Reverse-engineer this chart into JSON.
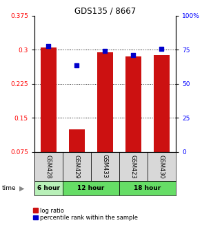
{
  "title": "GDS135 / 8667",
  "samples": [
    "GSM428",
    "GSM429",
    "GSM433",
    "GSM423",
    "GSM430"
  ],
  "time_group_spans": [
    1,
    2,
    2
  ],
  "time_group_labels": [
    "6 hour",
    "12 hour",
    "18 hour"
  ],
  "time_group_colors": [
    "#b8f0b8",
    "#66dd66",
    "#66dd66"
  ],
  "log_ratio": [
    0.305,
    0.125,
    0.295,
    0.285,
    0.288
  ],
  "percentile_rank": [
    0.308,
    0.265,
    0.298,
    0.288,
    0.302
  ],
  "bar_color": "#cc1111",
  "dot_color": "#0000cc",
  "ylim_left": [
    0.075,
    0.375
  ],
  "ylim_right": [
    0,
    100
  ],
  "yticks_left": [
    0.075,
    0.15,
    0.225,
    0.3,
    0.375
  ],
  "yticks_right": [
    0,
    25,
    50,
    75,
    100
  ],
  "ytick_labels_left": [
    "0.075",
    "0.15",
    "0.225",
    "0.3",
    "0.375"
  ],
  "ytick_labels_right": [
    "0",
    "25",
    "50",
    "75",
    "100%"
  ],
  "grid_values": [
    0.15,
    0.225,
    0.3
  ],
  "bar_width": 0.55,
  "legend_labels": [
    "log ratio",
    "percentile rank within the sample"
  ],
  "sample_bg": "#d8d8d8",
  "dot_marker_size": 18
}
